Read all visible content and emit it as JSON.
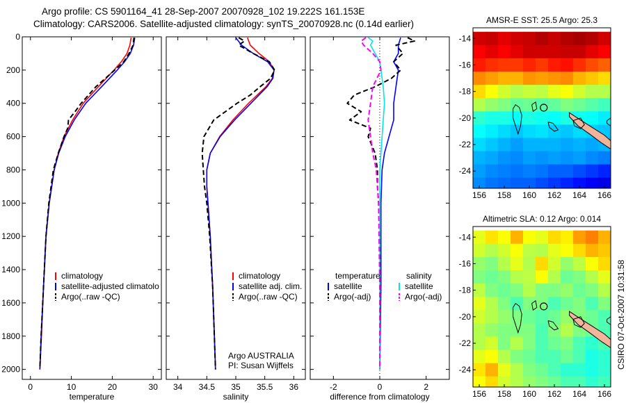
{
  "header": {
    "line1": "Argo profile: CS 5901164_41 28-Sep-2007 20070928_102 19.222S 161.153E",
    "line2": "Climatology: CARS2006. Satellite-adjusted climatology: synTS_20070928.nc (0.14d earlier)"
  },
  "credit": {
    "line1": "Argo AUSTRALIA",
    "line2": "PI: Susan Wijffels"
  },
  "stamp": "CSIRO 07-Oct-2007 10:31:58",
  "colors": {
    "climatology": "#ff0000",
    "satellite": "#0000ff",
    "argo": "#000000",
    "satellite_salinity": "#00e5ee",
    "argo_salinity": "#ff00ff"
  },
  "chart_data": [
    {
      "type": "line",
      "xlabel": "temperature",
      "ylabel": "",
      "xlim": [
        -2,
        32
      ],
      "ylim": [
        2060,
        0
      ],
      "y_reversed": true,
      "xticks": [
        0,
        10,
        20,
        30
      ],
      "yticks": [
        0,
        200,
        400,
        600,
        800,
        1000,
        1200,
        1400,
        1600,
        1800,
        2000
      ],
      "legend": [
        "climatology",
        "satellite-adjusted climatolo",
        "Argo(..raw -QC)"
      ],
      "legend_position": "lower-left",
      "series": [
        {
          "name": "climatology",
          "color": "#ff0000",
          "style": "solid",
          "depth": [
            5,
            50,
            100,
            150,
            200,
            300,
            400,
            500,
            600,
            700,
            800,
            1000,
            1200,
            1500,
            1800,
            2000
          ],
          "values": [
            24.6,
            24.3,
            23.6,
            22.2,
            20.4,
            16.6,
            12.9,
            10.3,
            8.2,
            6.8,
            5.8,
            4.6,
            3.8,
            3.2,
            2.7,
            2.3
          ]
        },
        {
          "name": "satellite-adjusted climatology",
          "color": "#0000ff",
          "style": "solid",
          "depth": [
            5,
            50,
            100,
            150,
            200,
            300,
            400,
            500,
            600,
            700,
            800,
            1000,
            1200,
            1500,
            1800,
            2000
          ],
          "values": [
            25.5,
            25.2,
            24.4,
            23.0,
            21.2,
            17.4,
            13.5,
            10.7,
            8.5,
            6.9,
            5.8,
            4.6,
            3.8,
            3.2,
            2.6,
            2.3
          ]
        },
        {
          "name": "Argo(..raw -QC)",
          "color": "#000000",
          "style": "dashed",
          "depth": [
            5,
            50,
            100,
            150,
            200,
            300,
            350,
            400,
            450,
            500,
            550,
            600,
            700,
            800,
            1000,
            1200,
            1500,
            1800,
            2000
          ],
          "values": [
            25.3,
            25.1,
            24.1,
            22.8,
            20.6,
            16.0,
            14.2,
            12.4,
            10.9,
            9.3,
            9.1,
            8.2,
            6.8,
            5.6,
            4.5,
            3.8,
            3.2,
            2.6,
            2.3
          ]
        }
      ]
    },
    {
      "type": "line",
      "xlabel": "salinity",
      "ylabel": "",
      "xlim": [
        33.8,
        36.2
      ],
      "ylim": [
        2060,
        0
      ],
      "y_reversed": true,
      "xticks": [
        34,
        34.5,
        35,
        35.5,
        36
      ],
      "legend": [
        "climatology",
        "satellite adj. clim.",
        "Argo(..raw -QC)"
      ],
      "legend_position": "lower-right",
      "series": [
        {
          "name": "climatology",
          "color": "#ff0000",
          "style": "solid",
          "depth": [
            5,
            50,
            100,
            150,
            200,
            250,
            300,
            400,
            500,
            600,
            700,
            800,
            900,
            1000,
            1200,
            1500,
            1800,
            2000
          ],
          "values": [
            35.2,
            35.25,
            35.4,
            35.58,
            35.66,
            35.63,
            35.52,
            35.22,
            34.95,
            34.72,
            34.56,
            34.5,
            34.5,
            34.52,
            34.56,
            34.6,
            34.63,
            34.65
          ]
        },
        {
          "name": "satellite adj. clim.",
          "color": "#0000ff",
          "style": "solid",
          "depth": [
            5,
            50,
            100,
            150,
            200,
            250,
            300,
            400,
            500,
            600,
            700,
            800,
            900,
            1000,
            1200,
            1500,
            1800,
            2000
          ],
          "values": [
            35.0,
            35.1,
            35.3,
            35.55,
            35.66,
            35.64,
            35.54,
            35.26,
            34.98,
            34.73,
            34.56,
            34.5,
            34.5,
            34.52,
            34.56,
            34.6,
            34.63,
            34.65
          ]
        },
        {
          "name": "Argo(..raw -QC)",
          "color": "#000000",
          "style": "dashed",
          "depth": [
            5,
            25,
            50,
            100,
            150,
            200,
            250,
            300,
            350,
            400,
            450,
            500,
            600,
            700,
            800,
            900,
            1000,
            1200,
            1500,
            1800,
            2000
          ],
          "values": [
            35.05,
            35.15,
            35.05,
            35.3,
            35.58,
            35.67,
            35.6,
            35.42,
            35.25,
            35.02,
            34.82,
            34.62,
            34.45,
            34.42,
            34.44,
            34.46,
            34.5,
            34.55,
            34.6,
            34.63,
            34.65
          ]
        }
      ]
    },
    {
      "type": "line",
      "xlabel": "difference from climatology",
      "ylabel": "",
      "xlim": [
        -3,
        3
      ],
      "ylim": [
        2060,
        0
      ],
      "y_reversed": true,
      "xticks": [
        -2,
        0,
        2
      ],
      "legend": {
        "temperature_title": "temperature",
        "salinity_title": "salinity",
        "entries": [
          "satellite",
          "Argo(-adj)",
          "satellite",
          "Argo(-adj)"
        ]
      },
      "legend_position": "lower-center",
      "series": [
        {
          "name": "temperature satellite",
          "color": "#0000ff",
          "style": "solid",
          "depth": [
            5,
            50,
            100,
            150,
            200,
            300,
            400,
            500,
            600,
            700,
            800,
            1000,
            1200,
            1500,
            2000
          ],
          "values": [
            0.9,
            0.8,
            0.8,
            0.6,
            0.8,
            0.7,
            0.6,
            0.6,
            0.4,
            0.2,
            0.1,
            0.05,
            0.05,
            0.05,
            0.0
          ]
        },
        {
          "name": "temperature Argo(-adj)",
          "color": "#000000",
          "style": "dashed",
          "depth": [
            5,
            25,
            50,
            100,
            150,
            200,
            250,
            300,
            350,
            400,
            450,
            500,
            550,
            600,
            700,
            800,
            900,
            1000,
            1200,
            2000
          ],
          "values": [
            1.2,
            1.5,
            0.7,
            1.0,
            0.6,
            0.9,
            0.5,
            -0.2,
            -1.1,
            -1.4,
            -0.8,
            -1.3,
            -0.4,
            -0.5,
            -0.2,
            -0.1,
            -0.1,
            -0.05,
            0.0,
            0.0
          ]
        },
        {
          "name": "salinity satellite",
          "color": "#00e5ee",
          "style": "solid",
          "depth": [
            5,
            25,
            50,
            100,
            150,
            200,
            300,
            400,
            500,
            600,
            700,
            800,
            1000,
            1500,
            2000
          ],
          "values": [
            -0.5,
            -0.3,
            -0.4,
            -0.2,
            0.0,
            0.05,
            0.15,
            0.2,
            0.15,
            0.1,
            0.05,
            0.0,
            0.0,
            0.0,
            0.0
          ]
        },
        {
          "name": "salinity Argo(-adj)",
          "color": "#ff00ff",
          "style": "dashed",
          "depth": [
            5,
            25,
            50,
            100,
            150,
            200,
            300,
            400,
            500,
            600,
            700,
            800,
            1000,
            1500,
            2000
          ],
          "values": [
            -0.6,
            -0.8,
            -0.7,
            -0.3,
            0.0,
            0.05,
            -0.3,
            -0.4,
            -0.5,
            -0.4,
            -0.3,
            -0.15,
            -0.05,
            0.0,
            0.0
          ]
        }
      ]
    },
    {
      "type": "heatmap",
      "title": "AMSR-E SST: 25.5 Argo: 25.3",
      "xlabel": "",
      "ylabel": "",
      "xlim": [
        155.5,
        166.5
      ],
      "ylim": [
        -25.3,
        -13.2
      ],
      "xticks": [
        156,
        158,
        160,
        162,
        164,
        166
      ],
      "yticks": [
        -14,
        -16,
        -18,
        -20,
        -22,
        -24
      ],
      "colormap": "jet",
      "profile_location": [
        161.153,
        -19.222
      ],
      "grid_lon": [
        156,
        157,
        158,
        159,
        160,
        161,
        162,
        163,
        164,
        165,
        166
      ],
      "grid_lat": [
        -14,
        -15,
        -16,
        -17,
        -18,
        -19,
        -20,
        -21,
        -22,
        -23,
        -24,
        -25
      ],
      "values": [
        [
          0.92,
          0.93,
          0.9,
          0.92,
          0.93,
          0.95,
          0.93,
          0.95,
          0.96,
          0.95,
          0.92
        ],
        [
          0.88,
          0.9,
          0.88,
          0.9,
          0.92,
          0.92,
          0.92,
          0.93,
          0.93,
          0.9,
          0.88
        ],
        [
          0.85,
          0.83,
          0.82,
          0.82,
          0.84,
          0.82,
          0.85,
          0.86,
          0.83,
          0.8,
          0.78
        ],
        [
          0.74,
          0.72,
          0.7,
          0.7,
          0.73,
          0.72,
          0.73,
          0.74,
          0.7,
          0.68,
          0.66
        ],
        [
          0.66,
          0.62,
          0.58,
          0.55,
          0.57,
          0.56,
          0.6,
          0.62,
          0.58,
          0.55,
          0.55
        ],
        [
          0.55,
          0.52,
          0.5,
          0.47,
          0.48,
          0.46,
          0.47,
          0.5,
          0.48,
          0.46,
          0.44
        ],
        [
          0.42,
          0.4,
          0.4,
          0.38,
          0.4,
          0.39,
          0.38,
          0.4,
          0.39,
          0.38,
          0.36
        ],
        [
          0.38,
          0.36,
          0.34,
          0.32,
          0.34,
          0.35,
          0.33,
          0.32,
          0.34,
          0.33,
          0.32
        ],
        [
          0.34,
          0.32,
          0.3,
          0.28,
          0.3,
          0.3,
          0.3,
          0.29,
          0.3,
          0.29,
          0.3
        ],
        [
          0.3,
          0.29,
          0.27,
          0.26,
          0.28,
          0.27,
          0.28,
          0.27,
          0.28,
          0.26,
          0.25
        ],
        [
          0.28,
          0.26,
          0.25,
          0.24,
          0.25,
          0.24,
          0.22,
          0.22,
          0.2,
          0.18,
          0.16
        ],
        [
          0.26,
          0.24,
          0.23,
          0.22,
          0.22,
          0.2,
          0.18,
          0.16,
          0.14,
          0.12,
          0.1
        ]
      ]
    },
    {
      "type": "heatmap",
      "title": "Altimetric SLA: 0.12 Argo: 0.014",
      "xlabel": "",
      "ylabel": "",
      "xlim": [
        155.5,
        166.5
      ],
      "ylim": [
        -25.3,
        -13.2
      ],
      "xticks": [
        156,
        158,
        160,
        162,
        164,
        166
      ],
      "yticks": [
        -14,
        -16,
        -18,
        -20,
        -22,
        -24
      ],
      "colormap": "jet",
      "profile_location": [
        161.153,
        -19.222
      ],
      "grid_lon": [
        156,
        157,
        158,
        159,
        160,
        161,
        162,
        163,
        164,
        165,
        166
      ],
      "grid_lat": [
        -14,
        -15,
        -16,
        -17,
        -18,
        -19,
        -20,
        -21,
        -22,
        -23,
        -24,
        -25
      ],
      "values": [
        [
          0.6,
          0.65,
          0.62,
          0.7,
          0.62,
          0.6,
          0.66,
          0.64,
          0.72,
          0.75,
          0.7
        ],
        [
          0.58,
          0.55,
          0.58,
          0.62,
          0.56,
          0.55,
          0.6,
          0.62,
          0.66,
          0.7,
          0.68
        ],
        [
          0.52,
          0.5,
          0.55,
          0.6,
          0.55,
          0.66,
          0.58,
          0.52,
          0.56,
          0.62,
          0.66
        ],
        [
          0.5,
          0.48,
          0.5,
          0.55,
          0.56,
          0.62,
          0.55,
          0.48,
          0.5,
          0.55,
          0.6
        ],
        [
          0.56,
          0.5,
          0.48,
          0.5,
          0.55,
          0.5,
          0.5,
          0.52,
          0.48,
          0.5,
          0.55
        ],
        [
          0.6,
          0.55,
          0.5,
          0.45,
          0.5,
          0.5,
          0.45,
          0.48,
          0.5,
          0.45,
          0.5
        ],
        [
          0.58,
          0.55,
          0.52,
          0.5,
          0.48,
          0.46,
          0.48,
          0.52,
          0.5,
          0.48,
          0.45
        ],
        [
          0.55,
          0.52,
          0.5,
          0.5,
          0.5,
          0.45,
          0.5,
          0.55,
          0.5,
          0.48,
          0.45
        ],
        [
          0.55,
          0.58,
          0.5,
          0.55,
          0.5,
          0.45,
          0.48,
          0.5,
          0.45,
          0.42,
          0.45
        ],
        [
          0.6,
          0.62,
          0.55,
          0.5,
          0.48,
          0.45,
          0.45,
          0.48,
          0.45,
          0.4,
          0.42
        ],
        [
          0.65,
          0.7,
          0.6,
          0.55,
          0.5,
          0.48,
          0.45,
          0.42,
          0.42,
          0.4,
          0.42
        ],
        [
          0.62,
          0.66,
          0.58,
          0.55,
          0.52,
          0.5,
          0.48,
          0.45,
          0.45,
          0.42,
          0.44
        ]
      ]
    }
  ]
}
